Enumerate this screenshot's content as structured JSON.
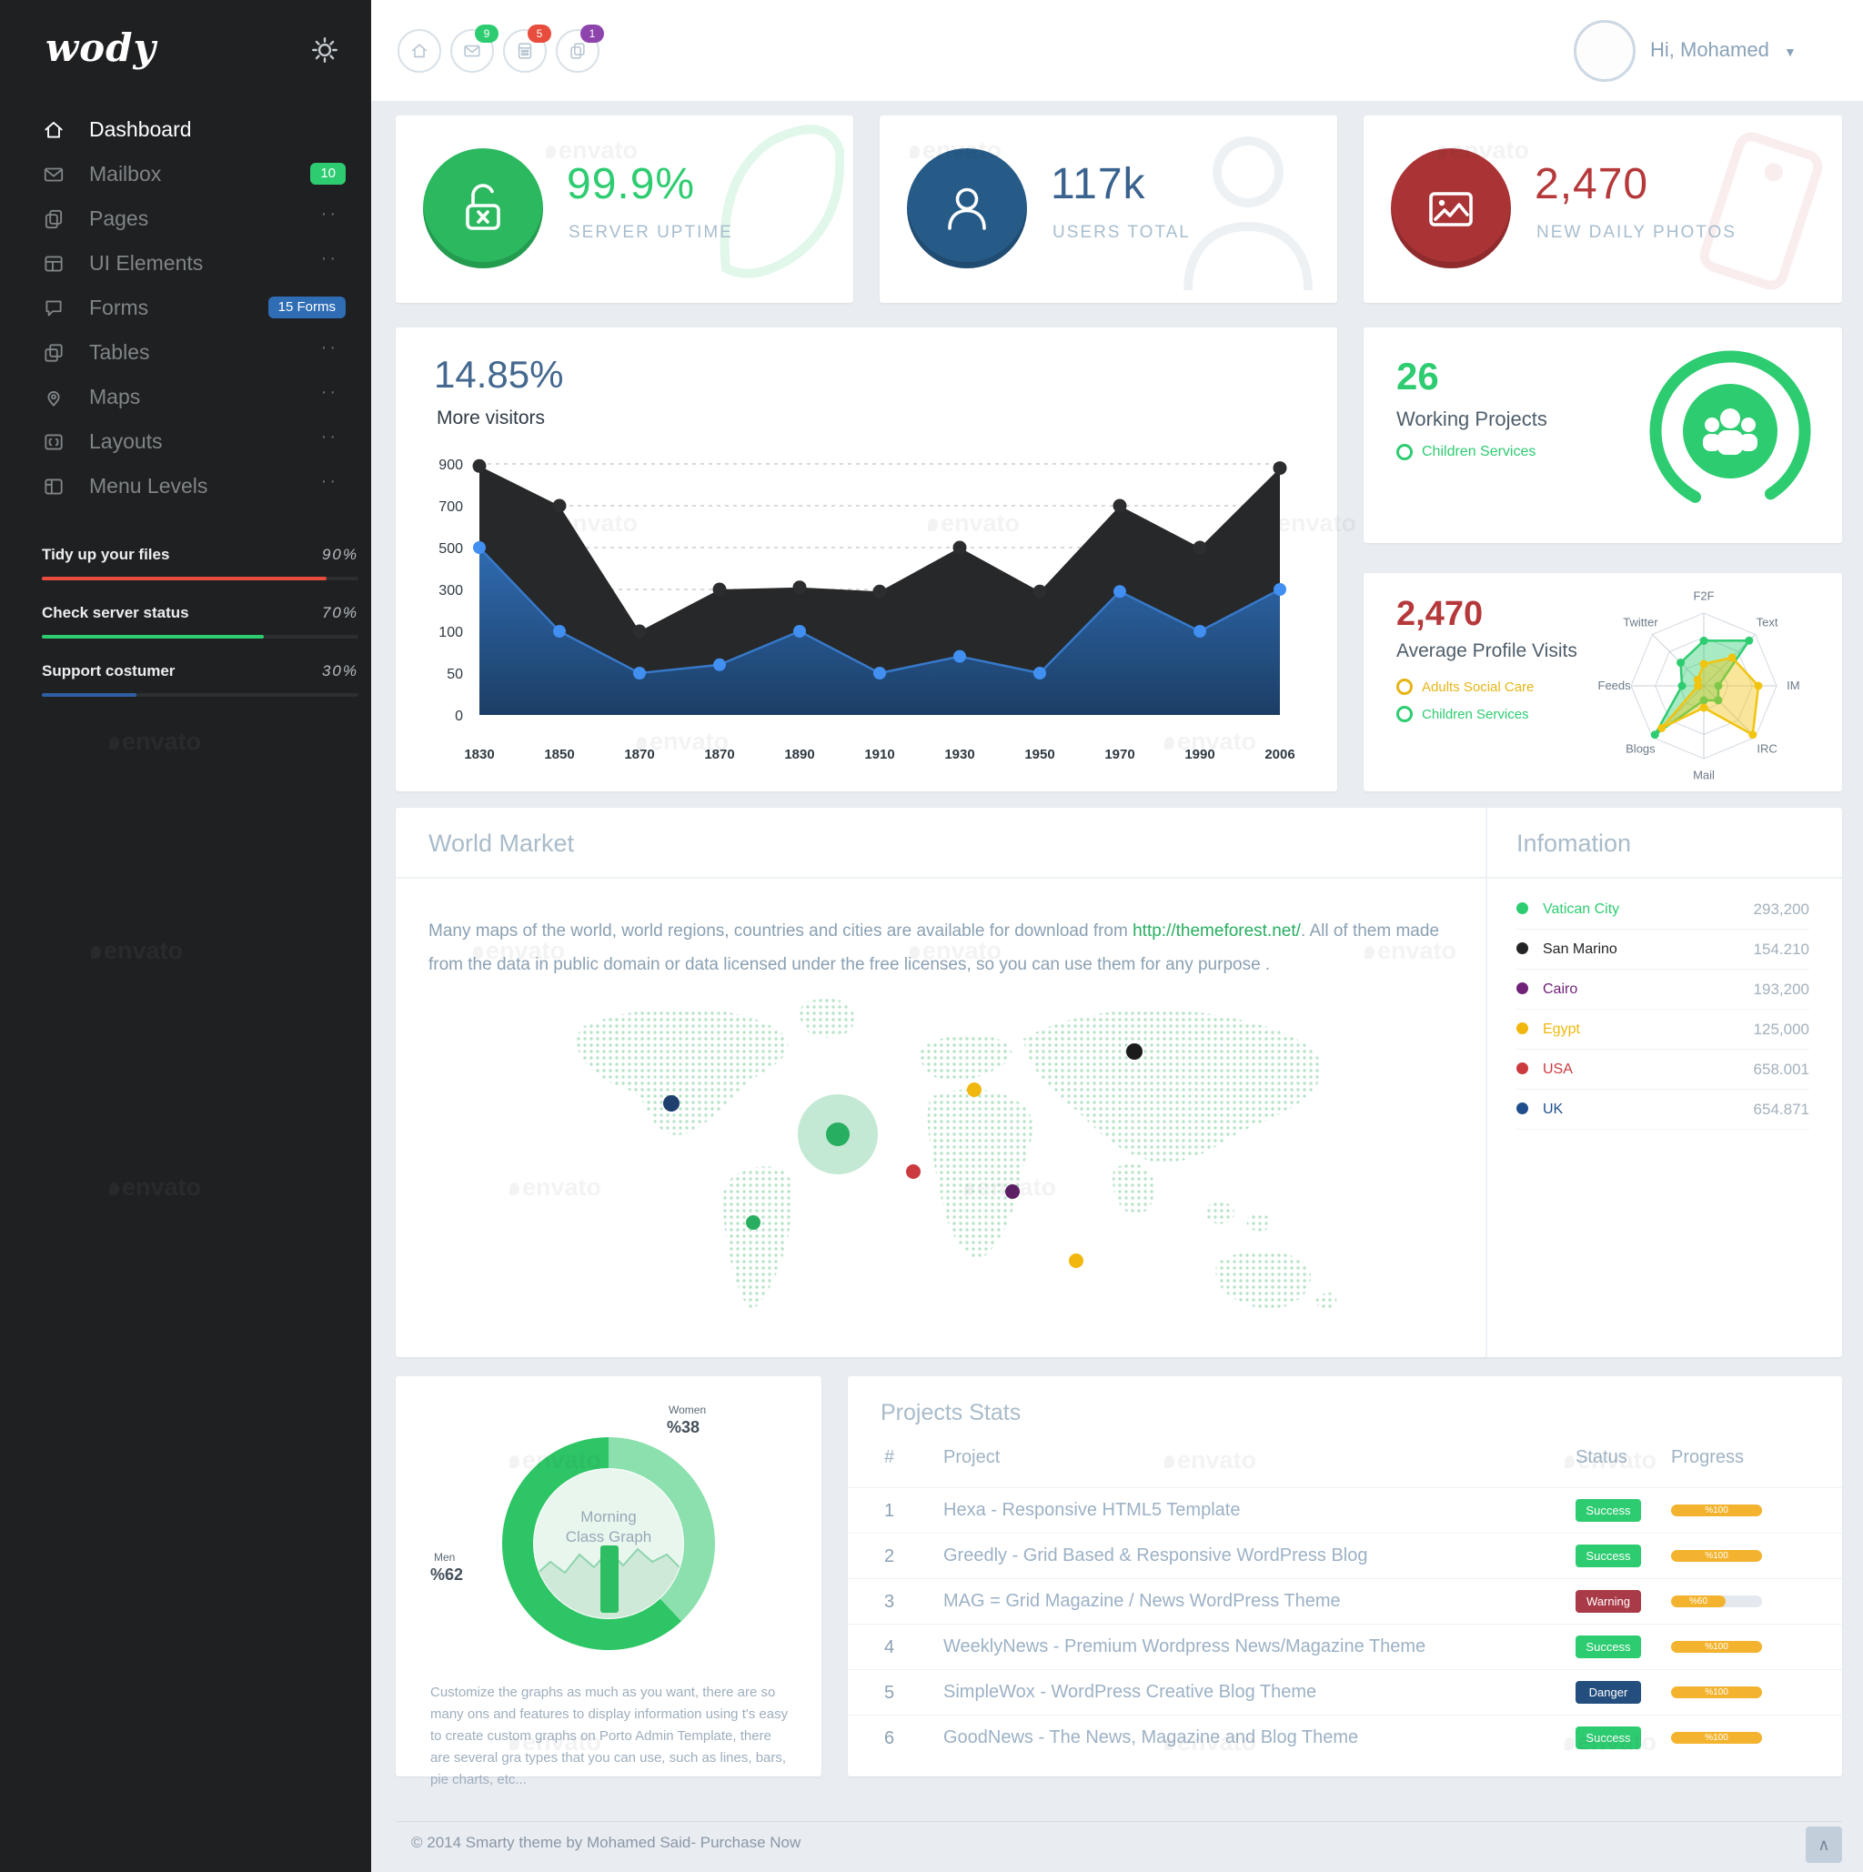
{
  "app": {
    "logo": "wody",
    "footer": "© 2014 Smarty theme by Mohamed Said- Purchase Now",
    "back_to_top": "∧",
    "watermark_text": "envato"
  },
  "topbar": {
    "icons": [
      {
        "name": "home",
        "badge": null,
        "badge_color": null
      },
      {
        "name": "mail",
        "badge": "9",
        "badge_color": "#2ecc71"
      },
      {
        "name": "calculator",
        "badge": "5",
        "badge_color": "#e74c3c"
      },
      {
        "name": "copy",
        "badge": "1",
        "badge_color": "#8e44ad"
      }
    ],
    "user": {
      "greeting": "Hi, Mohamed",
      "chevron": "▼"
    }
  },
  "sidebar": {
    "items": [
      {
        "label": "Dashboard",
        "icon": "home",
        "active": true,
        "badge": null,
        "dots": false
      },
      {
        "label": "Mailbox",
        "icon": "mail",
        "active": false,
        "badge": "10",
        "badge_color": "#2ecc71",
        "dots": false
      },
      {
        "label": "Pages",
        "icon": "pages",
        "active": false,
        "badge": null,
        "dots": true
      },
      {
        "label": "UI Elements",
        "icon": "grid",
        "active": false,
        "badge": null,
        "dots": true
      },
      {
        "label": "Forms",
        "icon": "forms",
        "active": false,
        "badge": "15 Forms",
        "badge_color": "#2f6db5",
        "dots": false
      },
      {
        "label": "Tables",
        "icon": "tables",
        "active": false,
        "badge": null,
        "dots": true
      },
      {
        "label": "Maps",
        "icon": "maps",
        "active": false,
        "badge": null,
        "dots": true
      },
      {
        "label": "Layouts",
        "icon": "layouts",
        "active": false,
        "badge": null,
        "dots": true
      },
      {
        "label": "Menu Levels",
        "icon": "menu",
        "active": false,
        "badge": null,
        "dots": true
      }
    ],
    "tasks": [
      {
        "label": "Tidy up your files",
        "percent": "90%",
        "value": 90,
        "color": "#e74c3c"
      },
      {
        "label": "Check server status",
        "percent": "70%",
        "value": 70,
        "color": "#2ecc71"
      },
      {
        "label": "Support costumer",
        "percent": "30%",
        "value": 30,
        "color": "#2e5fa3"
      }
    ]
  },
  "stats": [
    {
      "value": "99.9%",
      "label": "SERVER UPTIME",
      "icon": "lock-open",
      "circle_color": "#2bb85f",
      "accent": "#2ecc71"
    },
    {
      "value": "117k",
      "label": "USERS TOTAL",
      "icon": "user",
      "circle_color": "#265a87",
      "accent": "#39638e"
    },
    {
      "value": "2,470",
      "label": "NEW DAILY PHOTOS",
      "icon": "photo",
      "circle_color": "#a93335",
      "accent": "#b5393b"
    }
  ],
  "visitors": {
    "headline": "14.85%",
    "subtitle": "More visitors"
  },
  "working_projects": {
    "value": "26",
    "label": "Working Projects",
    "legend": [
      {
        "label": "Children Services",
        "color": "#2ecc71"
      }
    ]
  },
  "profile_visits": {
    "value": "2,470",
    "label": "Average Profile Visits",
    "legend": [
      {
        "label": "Adults Social Care",
        "color": "#e7b416"
      },
      {
        "label": "Children Services",
        "color": "#2ecc71"
      }
    ]
  },
  "world_market": {
    "title": "World Market",
    "text_before": "Many maps of the world, world regions, countries and cities are available for download from ",
    "link": "http://themeforest.net/",
    "text_after": ". All of them made from the data in public domain or data licensed under the free licenses, so you can use them for any purpose ."
  },
  "information": {
    "title": "Infomation",
    "items": [
      {
        "name": "Vatican City",
        "value": "293,200",
        "color": "#2ecc71"
      },
      {
        "name": "San Marino",
        "value": "154.210",
        "color": "#222426"
      },
      {
        "name": "Cairo",
        "value": "193,200",
        "color": "#6f2277"
      },
      {
        "name": "Egypt",
        "value": "125,000",
        "color": "#f1b70e"
      },
      {
        "name": "USA",
        "value": "658.001",
        "color": "#cb3a3e"
      },
      {
        "name": "UK",
        "value": "654.871",
        "color": "#1f4e8c"
      }
    ]
  },
  "morning": {
    "title_line1": "Morning",
    "title_line2": "Class Graph",
    "labels": [
      {
        "small": "Women",
        "big": "%38"
      },
      {
        "small": "Men",
        "big": "%62"
      }
    ],
    "paragraph": "Customize the graphs as much as you want, there are so many ons and features to display information using t's easy to create custom graphs on Porto Admin Template, there are several gra types that you can use, such as lines, bars, pie charts, etc..."
  },
  "projects": {
    "title": "Projects Stats",
    "columns": [
      "#",
      "Project",
      "Status",
      "Progress"
    ],
    "rows": [
      {
        "num": "1",
        "name": "Hexa - Responsive HTML5 Template",
        "status": "Success",
        "status_color": "#2ecc71",
        "progress": 100,
        "progress_label": "%100"
      },
      {
        "num": "2",
        "name": "Greedly - Grid Based & Responsive WordPress Blog",
        "status": "Success",
        "status_color": "#2ecc71",
        "progress": 100,
        "progress_label": "%100"
      },
      {
        "num": "3",
        "name": "MAG = Grid Magazine / News WordPress Theme",
        "status": "Warning",
        "status_color": "#a93a47",
        "progress": 60,
        "progress_label": "%60"
      },
      {
        "num": "4",
        "name": "WeeklyNews - Premium Wordpress News/Magazine Theme",
        "status": "Success",
        "status_color": "#2ecc71",
        "progress": 100,
        "progress_label": "%100"
      },
      {
        "num": "5",
        "name": "SimpleWox - WordPress Creative Blog Theme",
        "status": "Danger",
        "status_color": "#234e7d",
        "progress": 100,
        "progress_label": "%100"
      },
      {
        "num": "6",
        "name": "GoodNews - The News, Magazine and Blog Theme",
        "status": "Success",
        "status_color": "#2ecc71",
        "progress": 100,
        "progress_label": "%100"
      }
    ]
  },
  "chart_data": [
    {
      "id": "visitors-area",
      "type": "area",
      "title": "14.85% More visitors",
      "x": [
        "1830",
        "1850",
        "1870",
        "1870",
        "1890",
        "1910",
        "1930",
        "1950",
        "1970",
        "1990",
        "2006"
      ],
      "y_ticks": [
        900,
        700,
        500,
        300,
        100,
        50,
        0
      ],
      "ylim": [
        0,
        900
      ],
      "grid": "dashed horizontal",
      "series": [
        {
          "name": "visitors-dark",
          "color": "#26282a",
          "point_color": "#2b2d2f",
          "values": [
            890,
            700,
            100,
            300,
            310,
            290,
            500,
            290,
            700,
            500,
            880
          ]
        },
        {
          "name": "visitors-blue",
          "color": "#24548c",
          "line_color": "#3779c9",
          "point_color": "#418ff0",
          "values": [
            500,
            100,
            50,
            60,
            100,
            50,
            70,
            50,
            290,
            100,
            300
          ]
        }
      ]
    },
    {
      "id": "profile-visits-radar",
      "type": "radar",
      "axes": [
        "F2F",
        "Text",
        "IM",
        "IRC",
        "Mail",
        "Blogs",
        "Feeds",
        "Twitter"
      ],
      "rings": 3,
      "series": [
        {
          "name": "Children Services",
          "color": "#2ecc71",
          "values": [
            0.62,
            0.88,
            0.2,
            0.28,
            0.2,
            0.95,
            0.3,
            0.45
          ]
        },
        {
          "name": "Adults Social Care",
          "color": "#f1c40f",
          "values": [
            0.3,
            0.55,
            0.75,
            0.95,
            0.3,
            0.82,
            0.08,
            0.12
          ]
        }
      ]
    },
    {
      "id": "morning-class-donut",
      "type": "pie",
      "slices": [
        {
          "name": "Men",
          "value": 62,
          "color": "#2dc565"
        },
        {
          "name": "Women",
          "value": 38,
          "color": "#8ce0ae"
        }
      ]
    },
    {
      "id": "world-map-markers",
      "type": "scatter",
      "markers": [
        {
          "color": "#1f3f6e",
          "x": 153,
          "y": 129,
          "r": 9
        },
        {
          "color": "#1b1b1b",
          "x": 662,
          "y": 72,
          "r": 9
        },
        {
          "color": "#f1b70e",
          "x": 486,
          "y": 114,
          "r": 8
        },
        {
          "color": "#27ae60",
          "x": 336,
          "y": 163,
          "r": 13,
          "halo": true
        },
        {
          "color": "#cb3a3e",
          "x": 419,
          "y": 204,
          "r": 8
        },
        {
          "color": "#5e1f66",
          "x": 528,
          "y": 226,
          "r": 8
        },
        {
          "color": "#27ae60",
          "x": 243,
          "y": 260,
          "r": 8
        },
        {
          "color": "#f1b70e",
          "x": 598,
          "y": 302,
          "r": 8
        }
      ]
    }
  ]
}
